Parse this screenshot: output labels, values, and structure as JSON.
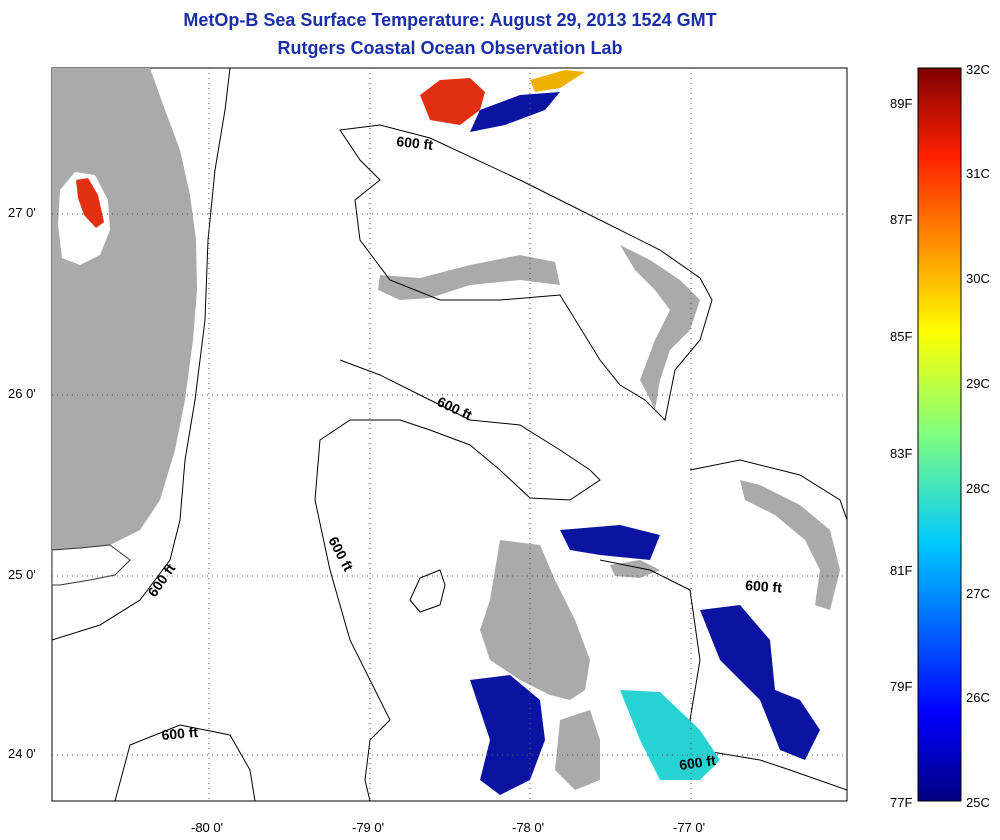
{
  "title": "MetOp-B Sea Surface Temperature:  August 29, 2013 1524 GMT",
  "subtitle": "Rutgers Coastal Ocean Observation Lab",
  "lat_labels": [
    "27 0'",
    "26 0'",
    "25 0'",
    "24 0'"
  ],
  "lon_labels": [
    "-80 0'",
    "-79 0'",
    "-78 0'",
    "-77 0'"
  ],
  "contour_label": "600 ft",
  "colorbar": {
    "celsius": [
      "32C",
      "31C",
      "30C",
      "29C",
      "28C",
      "27C",
      "26C",
      "25C"
    ],
    "fahrenheit": [
      "89F",
      "87F",
      "85F",
      "83F",
      "81F",
      "79F",
      "77F"
    ],
    "min_c": 25,
    "max_c": 32
  },
  "colors": {
    "land": "#aaaaaa",
    "title": "#1a2ea8",
    "warm": "#e03010",
    "cool": "#0a14a0",
    "mid": "#28d2d2"
  }
}
